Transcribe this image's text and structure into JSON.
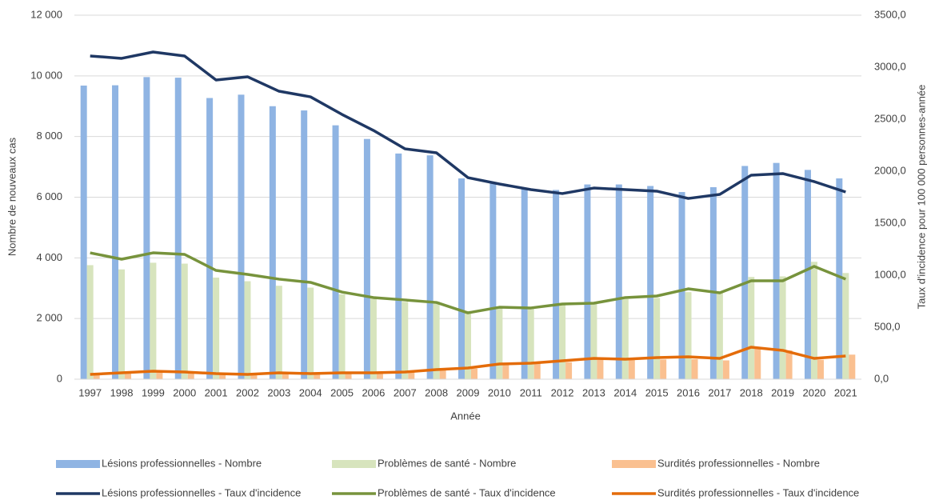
{
  "chart_data": {
    "type": "combo",
    "x_label": "Année",
    "y_label": "Nombre de nouveaux cas",
    "y2_label": "Taux d'incidence pour 100 000 personnes-année",
    "categories": [
      "1997",
      "1998",
      "1999",
      "2000",
      "2001",
      "2002",
      "2003",
      "2004",
      "2005",
      "2006",
      "2007",
      "2008",
      "2009",
      "2010",
      "2011",
      "2012",
      "2013",
      "2014",
      "2015",
      "2016",
      "2017",
      "2018",
      "2019",
      "2020",
      "2021"
    ],
    "ylim": [
      0,
      12000
    ],
    "yticks": [
      0,
      {
        "value": 2000,
        "label": "2 000"
      },
      {
        "value": 4000,
        "label": "4 000"
      },
      {
        "value": 6000,
        "label": "6 000"
      },
      {
        "value": 8000,
        "label": "8 000"
      },
      {
        "value": 10000,
        "label": "10 000"
      },
      {
        "value": 12000,
        "label": "12 000"
      }
    ],
    "y2lim": [
      0,
      3500
    ],
    "y2ticks": [
      {
        "value": 0,
        "label": "0,0"
      },
      {
        "value": 500,
        "label": "500,0"
      },
      {
        "value": 1000,
        "label": "1000,0"
      },
      {
        "value": 1500,
        "label": "1500,0"
      },
      {
        "value": 2000,
        "label": "2000,0"
      },
      {
        "value": 2500,
        "label": "2500,0"
      },
      {
        "value": 3000,
        "label": "3000,0"
      },
      {
        "value": 3500,
        "label": "3500,0"
      }
    ],
    "grid": true,
    "series": [
      {
        "name": "Lésions professionnelles - Nombre",
        "type": "bar",
        "color": "#8fb4e3",
        "values": [
          9680,
          9690,
          9960,
          9940,
          9270,
          9380,
          9000,
          8860,
          8370,
          7920,
          7440,
          7380,
          6620,
          6450,
          6310,
          6240,
          6420,
          6420,
          6370,
          6170,
          6330,
          7030,
          7130,
          6900,
          6620
        ]
      },
      {
        "name": "Problèmes de santé  - Nombre",
        "type": "bar",
        "color": "#d7e4bd",
        "values": [
          3760,
          3620,
          3840,
          3810,
          3350,
          3230,
          3080,
          3020,
          2800,
          2690,
          2550,
          2560,
          2250,
          2350,
          2370,
          2480,
          2540,
          2640,
          2680,
          2870,
          2840,
          3370,
          3390,
          3870,
          3500
        ]
      },
      {
        "name": "Surdités professionnelles - Nombre",
        "type": "bar",
        "color": "#fac090",
        "values": [
          150,
          190,
          230,
          250,
          190,
          170,
          200,
          190,
          190,
          210,
          230,
          300,
          350,
          500,
          530,
          560,
          640,
          640,
          650,
          660,
          620,
          1020,
          950,
          640,
          810
        ]
      },
      {
        "name": "Lésions professionnelles - Taux d'incidence",
        "type": "line",
        "axis": "y2",
        "color": "#1f3864",
        "values": [
          3108,
          3085,
          3146,
          3108,
          2877,
          2908,
          2769,
          2715,
          2546,
          2392,
          2215,
          2177,
          1938,
          1877,
          1823,
          1785,
          1838,
          1823,
          1808,
          1738,
          1777,
          1962,
          1977,
          1900,
          1800
        ]
      },
      {
        "name": "Problèmes de santé  - Taux d'incidence",
        "type": "line",
        "axis": "y2",
        "color": "#77933c",
        "values": [
          1215,
          1154,
          1215,
          1200,
          1046,
          1008,
          962,
          931,
          838,
          785,
          762,
          738,
          638,
          692,
          685,
          723,
          731,
          785,
          800,
          869,
          831,
          946,
          946,
          1085,
          962
        ]
      },
      {
        "name": "Surdités professionnelles - Taux d'incidence",
        "type": "line",
        "axis": "y2",
        "color": "#e46c0a",
        "values": [
          46,
          62,
          77,
          69,
          54,
          46,
          62,
          54,
          62,
          62,
          69,
          92,
          108,
          146,
          154,
          177,
          200,
          192,
          208,
          215,
          200,
          308,
          277,
          200,
          223
        ]
      }
    ]
  }
}
